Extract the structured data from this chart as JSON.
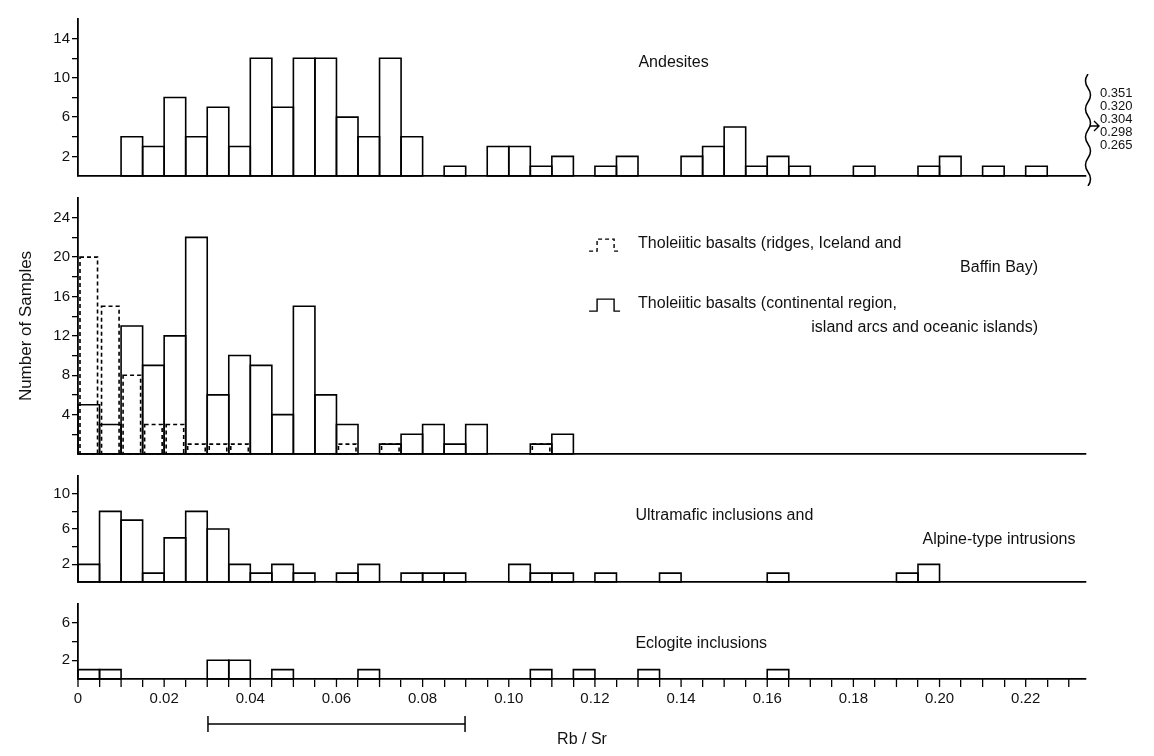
{
  "chart_data": [
    {
      "type": "histogram",
      "title": "Andesites",
      "bins": [
        0,
        0.005,
        0.01,
        0.015,
        0.02,
        0.025,
        0.03,
        0.035,
        0.04,
        0.045,
        0.05,
        0.055,
        0.06,
        0.065,
        0.07,
        0.075,
        0.08,
        0.085,
        0.09,
        0.095,
        0.1,
        0.105,
        0.11,
        0.115,
        0.12,
        0.125,
        0.13,
        0.135,
        0.14,
        0.145,
        0.15,
        0.155,
        0.16,
        0.165,
        0.17,
        0.175,
        0.18,
        0.185,
        0.19,
        0.195,
        0.2,
        0.205,
        0.21,
        0.215,
        0.22,
        0.225,
        0.23
      ],
      "series": [
        {
          "color": "#000000",
          "values": [
            0,
            0,
            4,
            3,
            8,
            4,
            7,
            3,
            12,
            7,
            12,
            12,
            6,
            4,
            12,
            4,
            0,
            1,
            0,
            3,
            3,
            1,
            2,
            0,
            1,
            2,
            0,
            0,
            2,
            3,
            5,
            1,
            2,
            1,
            0,
            0,
            1,
            0,
            0,
            1,
            2,
            0,
            1,
            0,
            1,
            0
          ]
        }
      ],
      "xlim": [
        0,
        0.234
      ],
      "ylim": [
        0,
        16
      ],
      "yticks": [
        2,
        {
          "value": 4,
          "label": null
        },
        6,
        {
          "value": 8,
          "label": null
        },
        10,
        {
          "value": 12,
          "label": null
        },
        14
      ],
      "annotations": [
        "0.351",
        "0.320",
        "0.304",
        "0.298",
        "0.265"
      ],
      "tick_labels": "y",
      "grid": false
    },
    {
      "type": "histogram",
      "ylabel": "Number of Samples",
      "bins": [
        0,
        0.005,
        0.01,
        0.015,
        0.02,
        0.025,
        0.03,
        0.035,
        0.04,
        0.045,
        0.05,
        0.055,
        0.06,
        0.065,
        0.07,
        0.075,
        0.08,
        0.085,
        0.09,
        0.095,
        0.1,
        0.105,
        0.11,
        0.115,
        0.12,
        0.125,
        0.13,
        0.135,
        0.14,
        0.145,
        0.15,
        0.155,
        0.16,
        0.165,
        0.17,
        0.175,
        0.18,
        0.185,
        0.19,
        0.195,
        0.2,
        0.205,
        0.21,
        0.215,
        0.22,
        0.225,
        0.23
      ],
      "series": [
        {
          "name": "Tholeiitic basalts (ridges, Iceland and Baffin Bay)",
          "color": "#000000",
          "line_style": "dashed",
          "values": [
            20,
            15,
            8,
            3,
            3,
            1,
            1,
            1,
            0,
            0,
            0,
            0,
            1,
            0,
            1,
            0,
            0,
            0,
            0,
            0,
            0,
            1,
            0,
            0,
            0,
            0,
            0,
            0,
            0,
            0,
            0,
            0,
            0,
            0,
            0,
            0,
            0,
            0,
            0,
            0,
            0,
            0,
            0,
            0,
            0,
            0
          ]
        },
        {
          "name": "Tholeiitic basalts (continental region, island arcs and oceanic islands)",
          "color": "#000000",
          "line_style": "solid",
          "values": [
            5,
            3,
            13,
            9,
            12,
            22,
            6,
            10,
            9,
            4,
            15,
            6,
            3,
            0,
            1,
            2,
            3,
            1,
            3,
            0,
            0,
            1,
            2,
            0,
            0,
            0,
            0,
            0,
            0,
            0,
            0,
            0,
            0,
            0,
            0,
            0,
            0,
            0,
            0,
            0,
            0,
            0,
            0,
            0,
            0,
            0
          ]
        }
      ],
      "xlim": [
        0,
        0.234
      ],
      "ylim": [
        0,
        26
      ],
      "yticks": [
        {
          "value": 2,
          "label": null
        },
        4,
        {
          "value": 6,
          "label": null
        },
        8,
        {
          "value": 10,
          "label": null
        },
        12,
        {
          "value": 14,
          "label": null
        },
        16,
        {
          "value": 18,
          "label": null
        },
        20,
        {
          "value": 22,
          "label": null
        },
        24
      ],
      "legend": "right",
      "tick_labels": "y",
      "grid": false
    },
    {
      "type": "histogram",
      "title": "Ultramafic inclusions and Alpine-type intrusions",
      "bins": [
        0,
        0.005,
        0.01,
        0.015,
        0.02,
        0.025,
        0.03,
        0.035,
        0.04,
        0.045,
        0.05,
        0.055,
        0.06,
        0.065,
        0.07,
        0.075,
        0.08,
        0.085,
        0.09,
        0.095,
        0.1,
        0.105,
        0.11,
        0.115,
        0.12,
        0.125,
        0.13,
        0.135,
        0.14,
        0.145,
        0.15,
        0.155,
        0.16,
        0.165,
        0.17,
        0.175,
        0.18,
        0.185,
        0.19,
        0.195,
        0.2,
        0.205,
        0.21,
        0.215,
        0.22,
        0.225,
        0.23
      ],
      "series": [
        {
          "color": "#000000",
          "values": [
            2,
            8,
            7,
            1,
            5,
            8,
            6,
            2,
            1,
            2,
            1,
            0,
            1,
            2,
            0,
            1,
            1,
            1,
            0,
            0,
            2,
            1,
            1,
            0,
            1,
            0,
            0,
            1,
            0,
            0,
            0,
            0,
            1,
            0,
            0,
            0,
            0,
            0,
            1,
            2,
            0,
            0,
            0,
            0,
            0,
            0
          ]
        }
      ],
      "xlim": [
        0,
        0.234
      ],
      "ylim": [
        0,
        12
      ],
      "yticks": [
        2,
        {
          "value": 4,
          "label": null
        },
        6,
        {
          "value": 8,
          "label": null
        },
        10
      ],
      "tick_labels": "y",
      "grid": false
    },
    {
      "type": "histogram",
      "title": "Eclogite inclusions",
      "xlabel": "Rb / Sr",
      "bins": [
        0,
        0.005,
        0.01,
        0.015,
        0.02,
        0.025,
        0.03,
        0.035,
        0.04,
        0.045,
        0.05,
        0.055,
        0.06,
        0.065,
        0.07,
        0.075,
        0.08,
        0.085,
        0.09,
        0.095,
        0.1,
        0.105,
        0.11,
        0.115,
        0.12,
        0.125,
        0.13,
        0.135,
        0.14,
        0.145,
        0.15,
        0.155,
        0.16,
        0.165,
        0.17,
        0.175,
        0.18,
        0.185,
        0.19,
        0.195,
        0.2,
        0.205,
        0.21,
        0.215,
        0.22,
        0.225,
        0.23
      ],
      "series": [
        {
          "color": "#000000",
          "values": [
            1,
            1,
            0,
            0,
            0,
            0,
            2,
            2,
            0,
            1,
            0,
            0,
            0,
            1,
            0,
            0,
            0,
            0,
            0,
            0,
            0,
            1,
            0,
            1,
            0,
            0,
            1,
            0,
            0,
            0,
            0,
            0,
            1,
            0,
            0,
            0,
            0,
            0,
            0,
            0,
            0,
            0,
            0,
            0,
            0,
            0
          ]
        }
      ],
      "xlim": [
        0,
        0.234
      ],
      "ylim": [
        0,
        8
      ],
      "yticks": [
        2,
        {
          "value": 4,
          "label": null
        },
        6
      ],
      "xticks": [
        0,
        {
          "value": 0.01,
          "label": null
        },
        {
          "value": 0.02,
          "label": "0.02"
        },
        {
          "value": 0.03,
          "label": null
        },
        {
          "value": 0.04,
          "label": "0.04"
        },
        {
          "value": 0.05,
          "label": null
        },
        {
          "value": 0.06,
          "label": "0.06"
        },
        {
          "value": 0.07,
          "label": null
        },
        {
          "value": 0.08,
          "label": "0.08"
        },
        {
          "value": 0.09,
          "label": null
        },
        {
          "value": 0.1,
          "label": "0.10"
        },
        {
          "value": 0.11,
          "label": null
        },
        {
          "value": 0.12,
          "label": "0.12"
        },
        {
          "value": 0.13,
          "label": null
        },
        {
          "value": 0.14,
          "label": "0.14"
        },
        {
          "value": 0.15,
          "label": null
        },
        {
          "value": 0.16,
          "label": "0.16"
        },
        {
          "value": 0.17,
          "label": null
        },
        {
          "value": 0.18,
          "label": "0.18"
        },
        {
          "value": 0.19,
          "label": null
        },
        {
          "value": 0.2,
          "label": "0.20"
        },
        {
          "value": 0.21,
          "label": null
        },
        {
          "value": 0.22,
          "label": "0.22"
        },
        {
          "value": 0.23,
          "label": null
        }
      ],
      "grid": false
    }
  ]
}
